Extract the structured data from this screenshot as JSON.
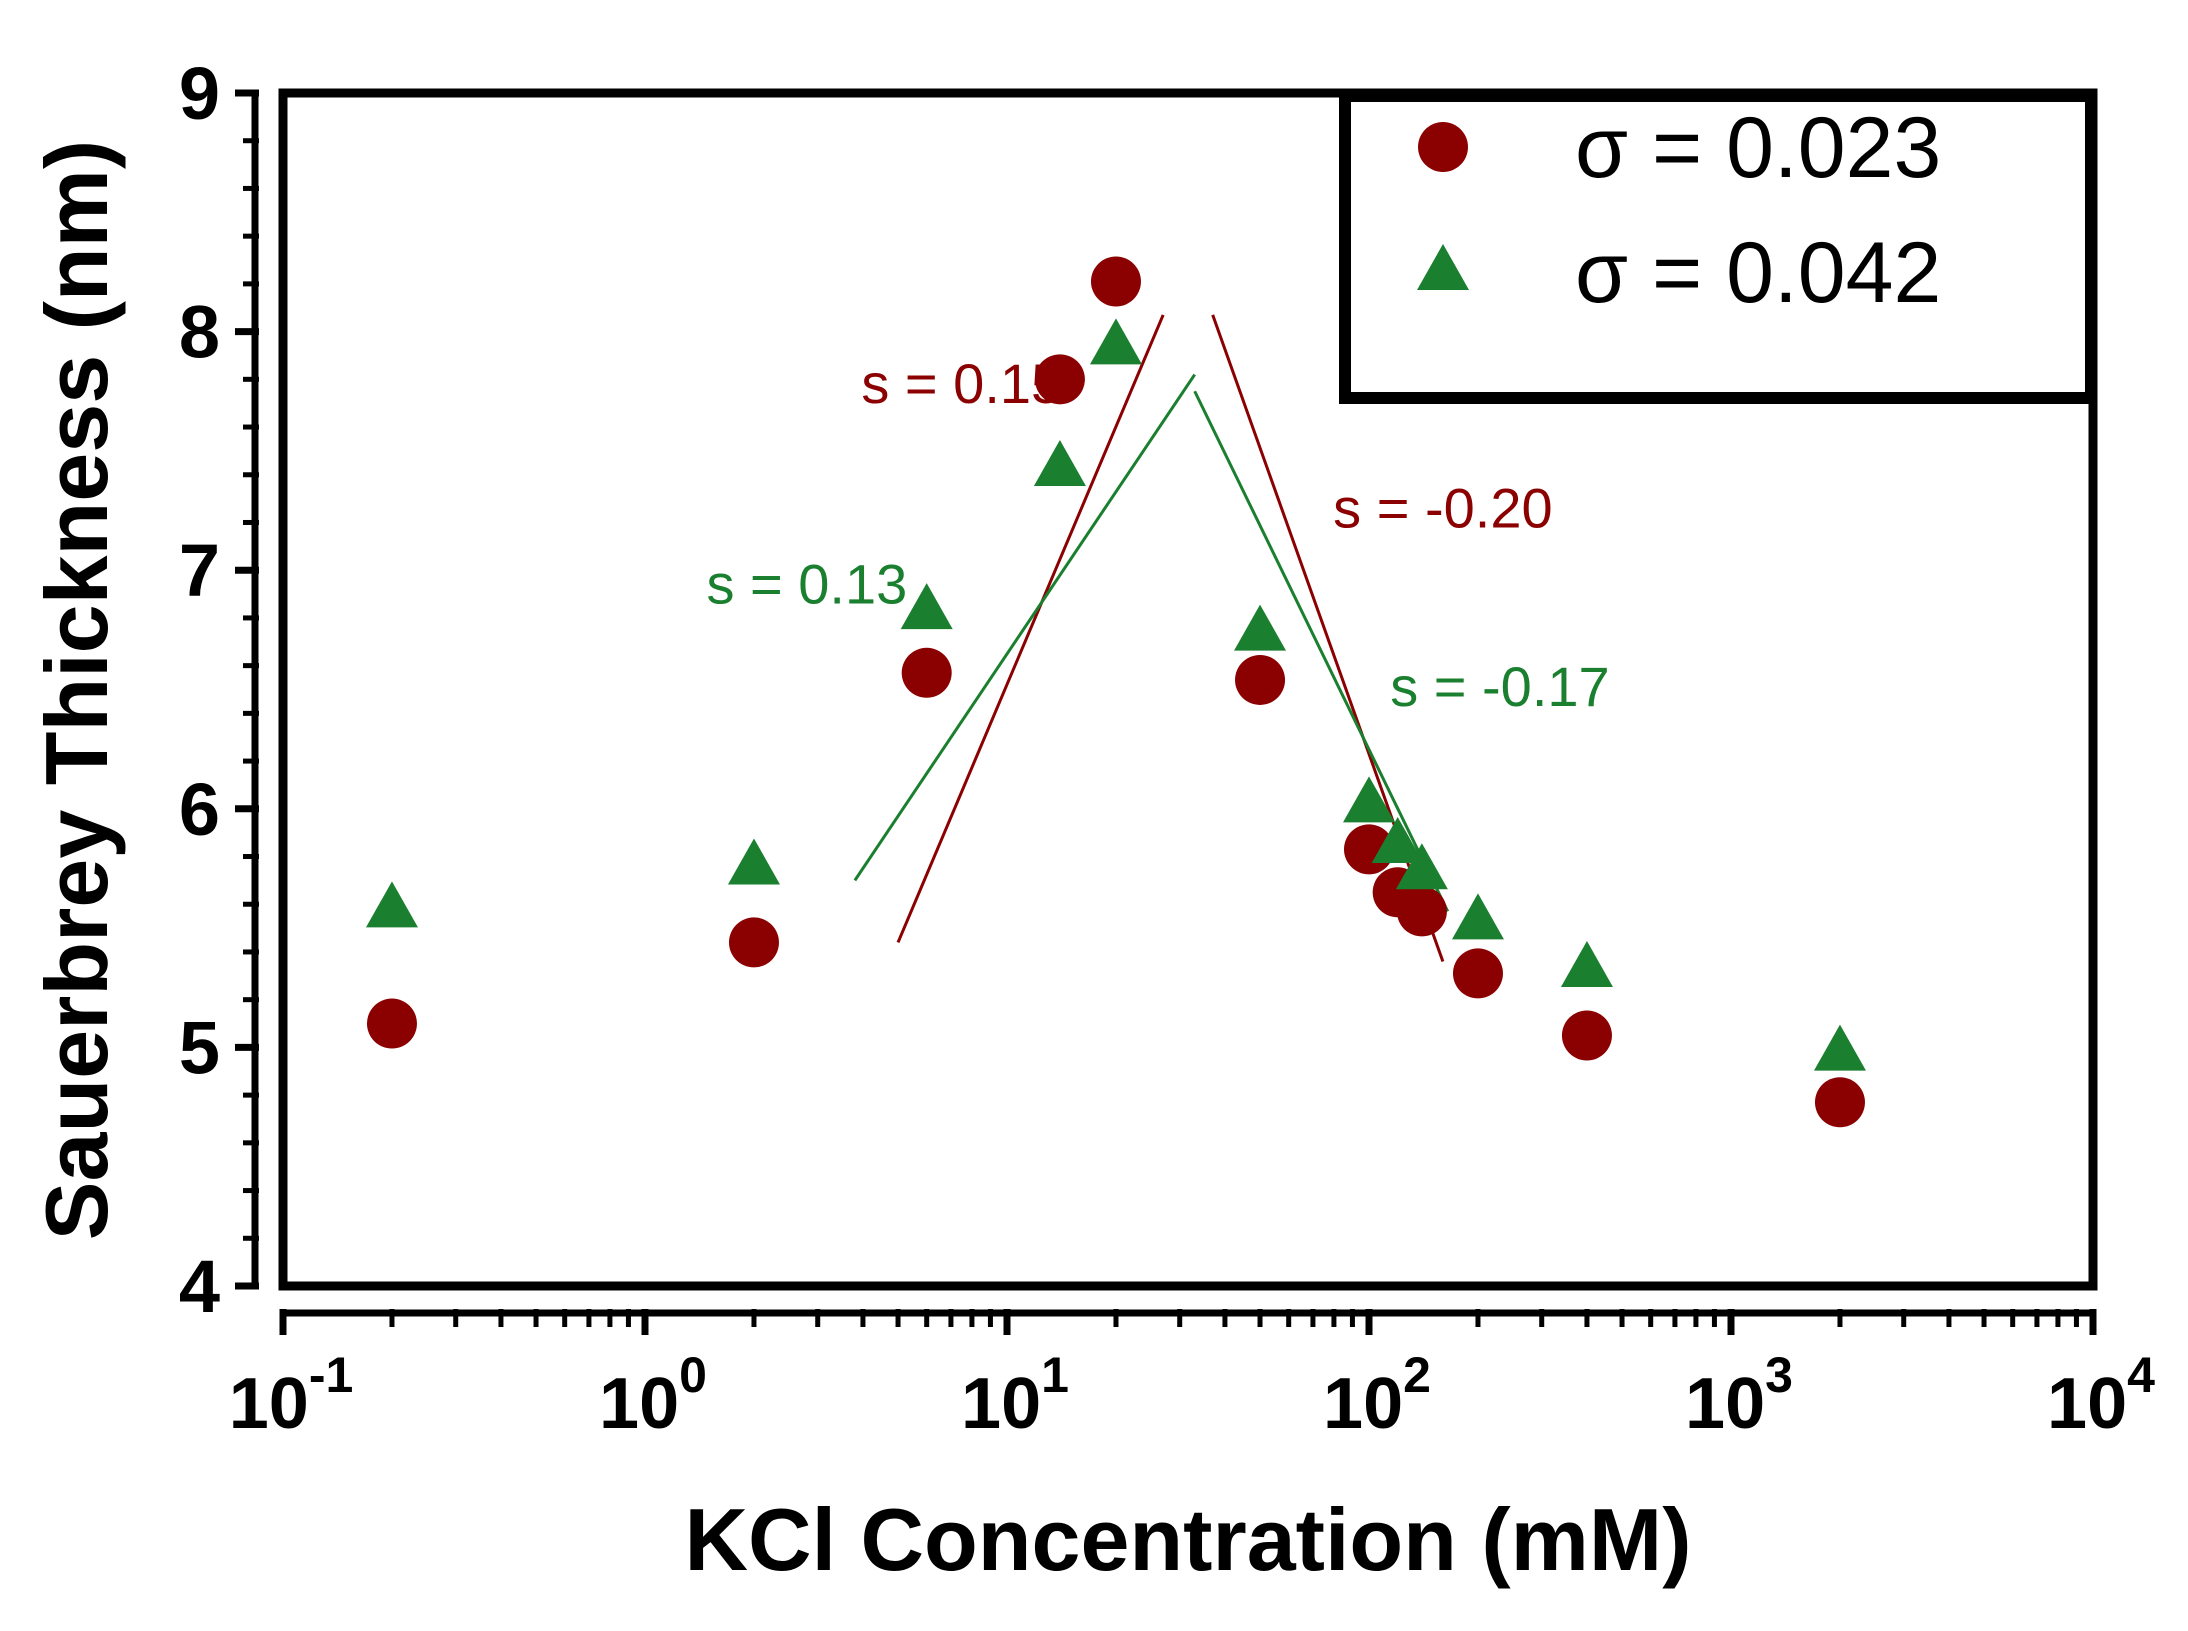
{
  "chart_data": {
    "type": "scatter",
    "title": "",
    "xlabel": "KCl Concentration (mM)",
    "ylabel": "Sauerbrey Thickness (nm)",
    "xscale": "log",
    "xlim": [
      0.1,
      10000
    ],
    "ylim": [
      4,
      9
    ],
    "x_ticks": [
      {
        "base": "10",
        "exp": "-1"
      },
      {
        "base": "10",
        "exp": "0"
      },
      {
        "base": "10",
        "exp": "1"
      },
      {
        "base": "10",
        "exp": "2"
      },
      {
        "base": "10",
        "exp": "3"
      },
      {
        "base": "10",
        "exp": "4"
      }
    ],
    "y_ticks": [
      "4",
      "5",
      "6",
      "7",
      "8",
      "9"
    ],
    "legend_position": "top-right",
    "series": [
      {
        "name": "σ = 0.023",
        "marker": "circle",
        "color": "#8b0000",
        "x": [
          0.2,
          2,
          6,
          14,
          20,
          50,
          100,
          120,
          140,
          200,
          400,
          2000
        ],
        "y": [
          5.1,
          5.44,
          6.57,
          7.8,
          8.21,
          6.54,
          5.83,
          5.65,
          5.57,
          5.31,
          5.05,
          4.77
        ]
      },
      {
        "name": "σ = 0.042",
        "marker": "triangle",
        "color": "#1a7f2e",
        "x": [
          0.2,
          2,
          6,
          14,
          20,
          50,
          100,
          120,
          140,
          200,
          400,
          2000
        ],
        "y": [
          5.58,
          5.76,
          6.83,
          7.43,
          7.94,
          6.74,
          6.02,
          5.85,
          5.74,
          5.53,
          5.33,
          4.98
        ]
      }
    ],
    "fit_lines": [
      {
        "series": "σ = 0.023",
        "color": "#8b0000",
        "x": [
          5,
          27
        ],
        "y": [
          5.44,
          8.07
        ]
      },
      {
        "series": "σ = 0.023",
        "color": "#8b0000",
        "x": [
          37,
          160
        ],
        "y": [
          8.07,
          5.36
        ]
      },
      {
        "series": "σ = 0.042",
        "color": "#1a7f2e",
        "x": [
          3.8,
          33
        ],
        "y": [
          5.7,
          7.82
        ]
      },
      {
        "series": "σ = 0.042",
        "color": "#1a7f2e",
        "x": [
          33,
          165
        ],
        "y": [
          7.75,
          5.57
        ]
      }
    ],
    "annotations": [
      {
        "text": "s = 0.15",
        "color": "#8b0000",
        "x": 7.5,
        "y": 7.7
      },
      {
        "text": "s = -0.20",
        "color": "#8b0000",
        "x": 160,
        "y": 7.18
      },
      {
        "text": "s = 0.13",
        "color": "#1a7f2e",
        "x": 2.8,
        "y": 6.86
      },
      {
        "text": "s = -0.17",
        "color": "#1a7f2e",
        "x": 230,
        "y": 6.43
      }
    ]
  }
}
